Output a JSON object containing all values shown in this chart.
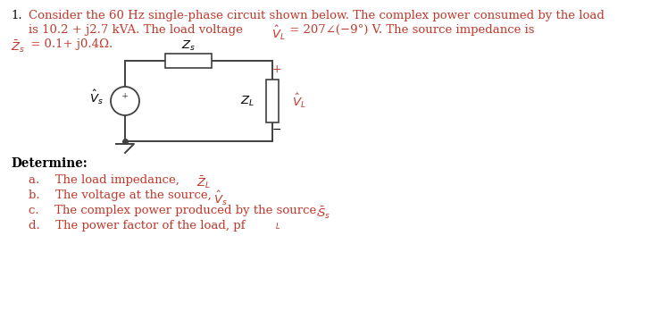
{
  "bg_color": "#ffffff",
  "red_color": "#c0392b",
  "black_color": "#000000",
  "dark_color": "#333333",
  "figsize": [
    7.29,
    3.58
  ],
  "dpi": 100,
  "fs_main": 9.5,
  "fs_math": 9.5,
  "circuit_color": "#404040",
  "text_line1": "Consider the 60 Hz single-phase circuit shown below. The complex power consumed by the load",
  "text_line2a": "is 10.2 + ",
  "text_line2b": "j",
  "text_line2c": "2.7 kVA. The load voltage ",
  "text_line2d": "= 207∠(−9°) V. The source impedance is",
  "text_line3b": "= 0.1+ ",
  "text_line3c": "j",
  "text_line3d": "0.4Ω.",
  "det_label": "Determine:",
  "item_a": "The load impedance, ",
  "item_b": "The voltage at the source, ",
  "item_c": "The complex power produced by the source, ",
  "item_d": "The power factor of the load, pf"
}
